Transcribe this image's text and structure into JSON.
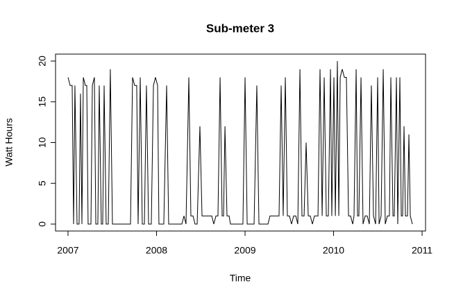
{
  "chart_data": {
    "type": "line",
    "title": "Sub-meter 3",
    "x_label": "Time",
    "y_label": "Watt Hours",
    "x": [
      2007.0,
      2007.024,
      2007.047,
      2007.063,
      2007.078,
      2007.102,
      2007.125,
      2007.141,
      2007.157,
      2007.173,
      2007.196,
      2007.212,
      2007.227,
      2007.259,
      2007.275,
      2007.298,
      2007.314,
      2007.337,
      2007.353,
      2007.376,
      2007.392,
      2007.408,
      2007.431,
      2007.455,
      2007.478,
      2007.502,
      2007.525,
      2007.706,
      2007.729,
      2007.753,
      2007.776,
      2007.792,
      2007.816,
      2007.839,
      2007.863,
      2007.886,
      2007.91,
      2007.941,
      2007.965,
      2007.988,
      2008.012,
      2008.027,
      2008.051,
      2008.082,
      2008.114,
      2008.137,
      2008.161,
      2008.286,
      2008.31,
      2008.333,
      2008.365,
      2008.388,
      2008.412,
      2008.435,
      2008.459,
      2008.49,
      2008.514,
      2008.545,
      2008.624,
      2008.647,
      2008.671,
      2008.694,
      2008.718,
      2008.741,
      2008.757,
      2008.773,
      2008.796,
      2008.82,
      2008.835,
      2008.867,
      2008.976,
      2009.0,
      2009.024,
      2009.102,
      2009.133,
      2009.157,
      2009.259,
      2009.282,
      2009.384,
      2009.408,
      2009.431,
      2009.455,
      2009.478,
      2009.502,
      2009.525,
      2009.549,
      2009.573,
      2009.596,
      2009.62,
      2009.643,
      2009.667,
      2009.69,
      2009.714,
      2009.737,
      2009.761,
      2009.784,
      2009.824,
      2009.847,
      2009.871,
      2009.894,
      2009.918,
      2009.941,
      2009.965,
      2009.98,
      2010.004,
      2010.02,
      2010.043,
      2010.059,
      2010.075,
      2010.098,
      2010.122,
      2010.145,
      2010.169,
      2010.192,
      2010.216,
      2010.231,
      2010.255,
      2010.271,
      2010.286,
      2010.31,
      2010.333,
      2010.357,
      2010.38,
      2010.404,
      2010.427,
      2010.451,
      2010.475,
      2010.498,
      2010.514,
      2010.537,
      2010.561,
      2010.584,
      2010.608,
      2010.631,
      2010.647,
      2010.671,
      2010.686,
      2010.71,
      2010.725,
      2010.749,
      2010.765,
      2010.78,
      2010.796,
      2010.812,
      2010.835,
      2010.851,
      2010.867,
      2010.89
    ],
    "series": [
      {
        "color": "#000000",
        "values": [
          18,
          17,
          17,
          0,
          17,
          0,
          0,
          16,
          0,
          18,
          17,
          17,
          0,
          0,
          17,
          18,
          0,
          0,
          17,
          0,
          0,
          17,
          0,
          0,
          19,
          0,
          0,
          0,
          18,
          17,
          17,
          0,
          18,
          0,
          0,
          17,
          0,
          0,
          17,
          18,
          17,
          0,
          0,
          0,
          17,
          0,
          0,
          0,
          1,
          0,
          18,
          1,
          1,
          0,
          0,
          12,
          1,
          1,
          1,
          0,
          1,
          1,
          18,
          1,
          1,
          12,
          1,
          1,
          0,
          0,
          0,
          18,
          0,
          0,
          17,
          0,
          0,
          1,
          1,
          17,
          1,
          18,
          1,
          1,
          0,
          1,
          1,
          0,
          19,
          1,
          1,
          10,
          1,
          1,
          0,
          1,
          1,
          19,
          1,
          18,
          1,
          1,
          19,
          1,
          18,
          1,
          20,
          1,
          18,
          19,
          18,
          18,
          1,
          1,
          0,
          1,
          19,
          1,
          1,
          18,
          0,
          1,
          1,
          0,
          17,
          1,
          0,
          18,
          0,
          1,
          19,
          0,
          1,
          1,
          18,
          1,
          1,
          18,
          0,
          18,
          1,
          1,
          12,
          1,
          1,
          11,
          1,
          0
        ]
      }
    ],
    "xlim": [
      2006.859,
      2011.039
    ],
    "ylim": [
      -0.85,
      20.85
    ],
    "xticks": [
      2007,
      2008,
      2009,
      2010,
      2011
    ],
    "yticks": [
      0,
      5,
      10,
      15,
      20
    ]
  }
}
